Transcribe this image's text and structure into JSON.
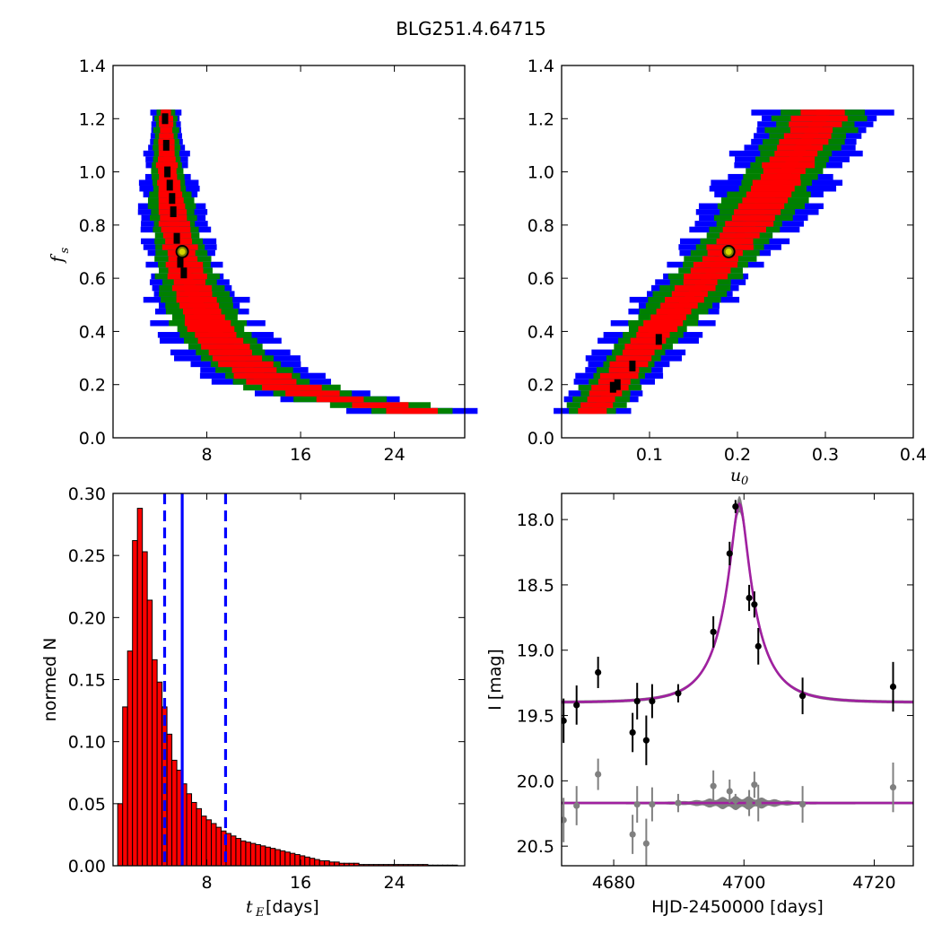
{
  "figure": {
    "title": "BLG251.4.64715"
  },
  "chart_data": [
    {
      "id": "panel_tE_fs",
      "type": "heatmap",
      "xlabel": "",
      "ylabel": "f",
      "ylabel_sub": "s",
      "xlim": [
        0,
        30
      ],
      "ylim": [
        0.0,
        1.4
      ],
      "xticks": [
        8,
        16,
        24
      ],
      "yticks": [
        0.0,
        0.2,
        0.4,
        0.6,
        0.8,
        1.0,
        1.2,
        1.4
      ],
      "best_fit": {
        "x": 5.9,
        "y": 0.7
      },
      "levels": [
        {
          "name": "3 sigma",
          "color": "#0000ff"
        },
        {
          "name": "2 sigma",
          "color": "#008000"
        },
        {
          "name": "1 sigma",
          "color": "#ff0000"
        },
        {
          "name": "peak",
          "color": "#000000"
        }
      ],
      "band": {
        "y_top": 1.23,
        "y_bottom": 0.09,
        "ridge_x": [
          [
            1.23,
            4.5
          ],
          [
            1.0,
            4.6
          ],
          [
            0.8,
            5.2
          ],
          [
            0.6,
            6.3
          ],
          [
            0.5,
            7.2
          ],
          [
            0.4,
            8.3
          ],
          [
            0.3,
            10.2
          ],
          [
            0.2,
            13.5
          ],
          [
            0.15,
            17.5
          ],
          [
            0.12,
            21.0
          ],
          [
            0.1,
            25.5
          ]
        ],
        "widths": [
          0.5,
          1.4,
          2.3,
          3.3
        ]
      },
      "peak_cells": [
        [
          4.4,
          1.2
        ],
        [
          4.5,
          1.1
        ],
        [
          4.6,
          1.0
        ],
        [
          4.8,
          0.95
        ],
        [
          5.0,
          0.9
        ],
        [
          5.1,
          0.85
        ],
        [
          5.4,
          0.75
        ],
        [
          5.7,
          0.66
        ],
        [
          6.0,
          0.62
        ]
      ]
    },
    {
      "id": "panel_u0_fs",
      "type": "heatmap",
      "xlabel": "u",
      "xlabel_sub": "0",
      "ylabel": "",
      "xlim": [
        0.0,
        0.4
      ],
      "ylim": [
        0.0,
        1.4
      ],
      "xticks": [
        0.1,
        0.2,
        0.3,
        0.4
      ],
      "yticks": [
        0.0,
        0.2,
        0.4,
        0.6,
        0.8,
        1.0,
        1.2,
        1.4
      ],
      "best_fit": {
        "x": 0.19,
        "y": 0.7
      },
      "levels": [
        {
          "name": "3 sigma",
          "color": "#0000ff"
        },
        {
          "name": "2 sigma",
          "color": "#008000"
        },
        {
          "name": "1 sigma",
          "color": "#ff0000"
        },
        {
          "name": "peak",
          "color": "#000000"
        }
      ],
      "band": {
        "y_top": 1.23,
        "y_bottom": 0.09,
        "ridge_x": [
          [
            0.09,
            0.035
          ],
          [
            0.2,
            0.06
          ],
          [
            0.4,
            0.11
          ],
          [
            0.6,
            0.165
          ],
          [
            0.8,
            0.215
          ],
          [
            1.0,
            0.255
          ],
          [
            1.2,
            0.295
          ],
          [
            1.23,
            0.3
          ]
        ],
        "widths": [
          0.008,
          0.028,
          0.048,
          0.07
        ]
      },
      "peak_cells": [
        [
          0.058,
          0.19
        ],
        [
          0.063,
          0.2
        ],
        [
          0.08,
          0.27
        ],
        [
          0.11,
          0.37
        ]
      ]
    },
    {
      "id": "panel_tE_hist",
      "type": "bar",
      "xlabel": "t",
      "xlabel_sub": "E",
      "xlabel_unit": " [days]",
      "ylabel": "normed N",
      "xlim": [
        0,
        30
      ],
      "ylim": [
        0.0,
        0.3
      ],
      "xticks": [
        8,
        16,
        24
      ],
      "yticks": [
        0.0,
        0.05,
        0.1,
        0.15,
        0.2,
        0.25,
        0.3
      ],
      "ytick_labels": [
        "0.00",
        "0.05",
        "0.10",
        "0.15",
        "0.20",
        "0.25",
        "0.30"
      ],
      "bin_start": 0.4,
      "bin_width": 0.42,
      "values": [
        0.05,
        0.128,
        0.173,
        0.262,
        0.288,
        0.253,
        0.214,
        0.166,
        0.148,
        0.128,
        0.106,
        0.085,
        0.077,
        0.066,
        0.058,
        0.051,
        0.046,
        0.04,
        0.037,
        0.034,
        0.031,
        0.028,
        0.026,
        0.024,
        0.022,
        0.02,
        0.019,
        0.018,
        0.017,
        0.016,
        0.015,
        0.014,
        0.013,
        0.012,
        0.011,
        0.01,
        0.009,
        0.008,
        0.007,
        0.006,
        0.005,
        0.004,
        0.004,
        0.003,
        0.003,
        0.002,
        0.002,
        0.002,
        0.002,
        0.001,
        0.001,
        0.001,
        0.001,
        0.001,
        0.001,
        0.001,
        0.001,
        0.001,
        0.001,
        0.001,
        0.001,
        0.001,
        0.001,
        0.0005,
        0.0005,
        0.0005,
        0.0005,
        0.0005,
        0.0005
      ],
      "bar_color": "#ff0000",
      "median": 5.9,
      "lower": 4.4,
      "upper": 9.6,
      "line_color": "#0000ff"
    },
    {
      "id": "panel_lightcurve",
      "type": "scatter",
      "xlabel": "HJD-2450000 [days]",
      "ylabel": "I [mag]",
      "xlim": [
        4672,
        4726
      ],
      "ylim": [
        20.65,
        17.8
      ],
      "y_inverted": true,
      "xticks": [
        4680,
        4700,
        4720
      ],
      "yticks": [
        18.0,
        18.5,
        19.0,
        19.5,
        20.0,
        20.5
      ],
      "ytick_labels": [
        "18.0",
        "18.5",
        "19.0",
        "19.5",
        "20.0",
        "20.5"
      ],
      "model": {
        "t0": 4699.3,
        "baseline": 19.4,
        "peak": 17.88,
        "tE": 5.9,
        "u0": 0.19,
        "fs": 0.7
      },
      "model_color": "#a020a0",
      "band_color": "#808080",
      "residual_offset": 20.17,
      "data": [
        {
          "x": 4672.3,
          "y": 19.54,
          "err": 0.17
        },
        {
          "x": 4674.3,
          "y": 19.42,
          "err": 0.15
        },
        {
          "x": 4677.6,
          "y": 19.17,
          "err": 0.12
        },
        {
          "x": 4682.9,
          "y": 19.63,
          "err": 0.15
        },
        {
          "x": 4683.6,
          "y": 19.39,
          "err": 0.14
        },
        {
          "x": 4685.0,
          "y": 19.69,
          "err": 0.19
        },
        {
          "x": 4685.9,
          "y": 19.39,
          "err": 0.13
        },
        {
          "x": 4689.9,
          "y": 19.33,
          "err": 0.07
        },
        {
          "x": 4695.3,
          "y": 18.86,
          "err": 0.12
        },
        {
          "x": 4697.8,
          "y": 18.26,
          "err": 0.09
        },
        {
          "x": 4698.7,
          "y": 17.9,
          "err": 0.05
        },
        {
          "x": 4700.8,
          "y": 18.6,
          "err": 0.1
        },
        {
          "x": 4701.6,
          "y": 18.65,
          "err": 0.1
        },
        {
          "x": 4702.2,
          "y": 18.97,
          "err": 0.14
        },
        {
          "x": 4709.0,
          "y": 19.35,
          "err": 0.14
        },
        {
          "x": 4722.9,
          "y": 19.28,
          "err": 0.19
        }
      ],
      "residuals": [
        {
          "x": 4672.3,
          "y": 20.3,
          "err": 0.17
        },
        {
          "x": 4674.3,
          "y": 20.19,
          "err": 0.15
        },
        {
          "x": 4677.6,
          "y": 19.95,
          "err": 0.12
        },
        {
          "x": 4682.9,
          "y": 20.41,
          "err": 0.15
        },
        {
          "x": 4683.6,
          "y": 20.18,
          "err": 0.14
        },
        {
          "x": 4685.0,
          "y": 20.48,
          "err": 0.19
        },
        {
          "x": 4685.9,
          "y": 20.18,
          "err": 0.13
        },
        {
          "x": 4689.9,
          "y": 20.17,
          "err": 0.07
        },
        {
          "x": 4695.3,
          "y": 20.04,
          "err": 0.12
        },
        {
          "x": 4697.8,
          "y": 20.08,
          "err": 0.09
        },
        {
          "x": 4698.7,
          "y": 20.15,
          "err": 0.05
        },
        {
          "x": 4700.8,
          "y": 20.17,
          "err": 0.1
        },
        {
          "x": 4701.6,
          "y": 20.03,
          "err": 0.1
        },
        {
          "x": 4702.2,
          "y": 20.17,
          "err": 0.14
        },
        {
          "x": 4709.0,
          "y": 20.18,
          "err": 0.14
        },
        {
          "x": 4722.9,
          "y": 20.05,
          "err": 0.19
        }
      ],
      "data_color": "#000000",
      "residual_color": "#808080"
    }
  ]
}
